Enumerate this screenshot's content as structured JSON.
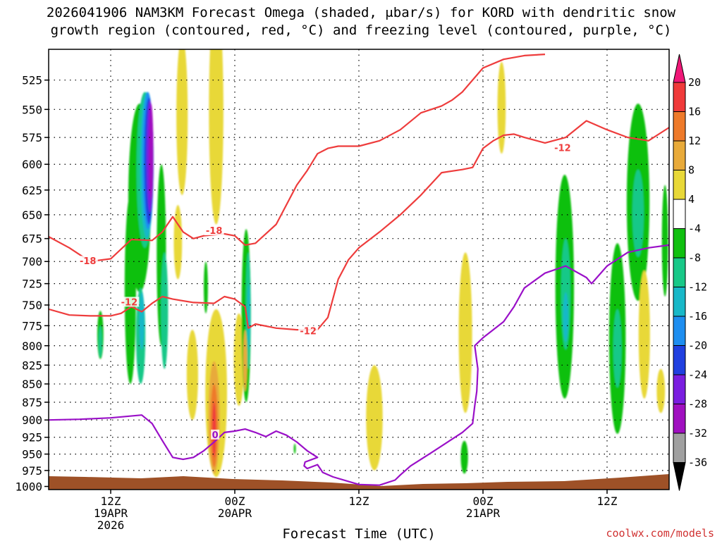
{
  "chart_data": {
    "type": "heatmap",
    "title_line1": "2026041906 NAM3KM Forecast Omega (shaded, μbar/s) for KORD with dendritic snow",
    "title_line2": "growth region (contoured, red, °C) and freezing level (contoured, purple, °C)",
    "xlabel": "Forecast Time (UTC)",
    "ylabel": "Pressure (mb)",
    "credit": "coolwx.com/models",
    "x_range_hours": [
      0,
      60
    ],
    "y_range_mb": [
      1005,
      500
    ],
    "x_ticks": [
      {
        "hour": 6,
        "line1": "12Z",
        "line2": "19APR",
        "line3": "2026"
      },
      {
        "hour": 18,
        "line1": "00Z",
        "line2": "20APR",
        "line3": ""
      },
      {
        "hour": 30,
        "line1": "12Z",
        "line2": "",
        "line3": ""
      },
      {
        "hour": 42,
        "line1": "00Z",
        "line2": "21APR",
        "line3": ""
      },
      {
        "hour": 54,
        "line1": "12Z",
        "line2": "",
        "line3": ""
      }
    ],
    "y_ticks": [
      525,
      550,
      575,
      600,
      625,
      650,
      675,
      700,
      725,
      750,
      775,
      800,
      825,
      850,
      875,
      900,
      925,
      950,
      975,
      1000
    ],
    "colorbar": {
      "labels": [
        "20",
        "16",
        "12",
        "8",
        "4",
        "-4",
        "-8",
        "-12",
        "-16",
        "-20",
        "-24",
        "-28",
        "-32",
        "-36"
      ],
      "colors": [
        "#f01878",
        "#f03a3a",
        "#ee7a2a",
        "#e8aa3a",
        "#e8d838",
        "#ffffff",
        "#10c010",
        "#18c888",
        "#18b8c8",
        "#1e8ef0",
        "#2040e0",
        "#7a1ee0",
        "#a010c0",
        "#a0a0a0",
        "#000000"
      ]
    },
    "omega_cells": [
      {
        "t": 5.0,
        "p": 787,
        "dt": 0.6,
        "dp": 60,
        "v": -4
      },
      {
        "t": 5.0,
        "p": 795,
        "dt": 0.35,
        "dp": 40,
        "v": -8
      },
      {
        "t": 7.9,
        "p": 740,
        "dt": 1.1,
        "dp": 220,
        "v": -4
      },
      {
        "t": 8.8,
        "p": 640,
        "dt": 2.2,
        "dp": 190,
        "v": -4
      },
      {
        "t": 9.3,
        "p": 610,
        "dt": 1.6,
        "dp": 150,
        "v": -8
      },
      {
        "t": 9.5,
        "p": 605,
        "dt": 1.3,
        "dp": 140,
        "v": -12
      },
      {
        "t": 9.6,
        "p": 600,
        "dt": 1.1,
        "dp": 130,
        "v": -16
      },
      {
        "t": 9.7,
        "p": 600,
        "dt": 0.9,
        "dp": 120,
        "v": -20
      },
      {
        "t": 9.8,
        "p": 595,
        "dt": 0.65,
        "dp": 105,
        "v": -24
      },
      {
        "t": 9.9,
        "p": 590,
        "dt": 0.45,
        "dp": 90,
        "v": -28
      },
      {
        "t": 8.9,
        "p": 790,
        "dt": 0.9,
        "dp": 120,
        "v": -8
      },
      {
        "t": 9.0,
        "p": 770,
        "dt": 0.5,
        "dp": 70,
        "v": -12
      },
      {
        "t": 10.9,
        "p": 700,
        "dt": 0.9,
        "dp": 200,
        "v": -4
      },
      {
        "t": 11.2,
        "p": 760,
        "dt": 0.7,
        "dp": 140,
        "v": -8
      },
      {
        "t": 12.9,
        "p": 560,
        "dt": 1.1,
        "dp": 140,
        "v": 4
      },
      {
        "t": 12.5,
        "p": 680,
        "dt": 0.8,
        "dp": 80,
        "v": 4
      },
      {
        "t": 15.2,
        "p": 730,
        "dt": 0.4,
        "dp": 60,
        "v": -4
      },
      {
        "t": 16.2,
        "p": 560,
        "dt": 1.4,
        "dp": 200,
        "v": 4
      },
      {
        "t": 13.9,
        "p": 840,
        "dt": 1.1,
        "dp": 120,
        "v": 4
      },
      {
        "t": 16.2,
        "p": 870,
        "dt": 2.1,
        "dp": 230,
        "v": 4
      },
      {
        "t": 16.0,
        "p": 900,
        "dt": 1.1,
        "dp": 160,
        "v": 8
      },
      {
        "t": 16.0,
        "p": 910,
        "dt": 0.7,
        "dp": 120,
        "v": 12
      },
      {
        "t": 16.0,
        "p": 915,
        "dt": 0.35,
        "dp": 80,
        "v": 16
      },
      {
        "t": 18.4,
        "p": 820,
        "dt": 1.0,
        "dp": 120,
        "v": 4
      },
      {
        "t": 19.1,
        "p": 770,
        "dt": 0.9,
        "dp": 210,
        "v": -4
      },
      {
        "t": 19.3,
        "p": 760,
        "dt": 0.5,
        "dp": 140,
        "v": -8
      },
      {
        "t": 19.35,
        "p": 765,
        "dt": 0.25,
        "dp": 80,
        "v": -12
      },
      {
        "t": 19.0,
        "p": 820,
        "dt": 0.4,
        "dp": 80,
        "v": 8
      },
      {
        "t": 23.8,
        "p": 942,
        "dt": 0.2,
        "dp": 15,
        "v": -4
      },
      {
        "t": 31.5,
        "p": 900,
        "dt": 1.6,
        "dp": 150,
        "v": 4
      },
      {
        "t": 40.3,
        "p": 790,
        "dt": 1.3,
        "dp": 200,
        "v": 4
      },
      {
        "t": 40.2,
        "p": 955,
        "dt": 0.7,
        "dp": 50,
        "v": -4
      },
      {
        "t": 43.8,
        "p": 550,
        "dt": 0.8,
        "dp": 80,
        "v": 4
      },
      {
        "t": 49.9,
        "p": 740,
        "dt": 1.8,
        "dp": 260,
        "v": -4
      },
      {
        "t": 50.0,
        "p": 740,
        "dt": 0.9,
        "dp": 130,
        "v": -8
      },
      {
        "t": 50.0,
        "p": 765,
        "dt": 0.5,
        "dp": 60,
        "v": -12
      },
      {
        "t": 55.0,
        "p": 800,
        "dt": 1.6,
        "dp": 240,
        "v": -4
      },
      {
        "t": 55.0,
        "p": 805,
        "dt": 0.8,
        "dp": 100,
        "v": -8
      },
      {
        "t": 57.0,
        "p": 645,
        "dt": 2.2,
        "dp": 200,
        "v": -4
      },
      {
        "t": 57.0,
        "p": 650,
        "dt": 1.1,
        "dp": 90,
        "v": -8
      },
      {
        "t": 59.6,
        "p": 680,
        "dt": 0.6,
        "dp": 120,
        "v": -4
      },
      {
        "t": 57.6,
        "p": 790,
        "dt": 1.1,
        "dp": 160,
        "v": 4
      },
      {
        "t": 59.2,
        "p": 860,
        "dt": 0.8,
        "dp": 60,
        "v": 4
      }
    ],
    "red_contours": [
      {
        "value": "-18",
        "points": [
          [
            0,
            673
          ],
          [
            2,
            685
          ],
          [
            4,
            700
          ],
          [
            6,
            697
          ],
          [
            8,
            676
          ],
          [
            10,
            677
          ],
          [
            11,
            668
          ],
          [
            12,
            652
          ],
          [
            13,
            668
          ],
          [
            14,
            675
          ],
          [
            15,
            672
          ],
          [
            16,
            671
          ],
          [
            17,
            670
          ],
          [
            18,
            672
          ],
          [
            19,
            682
          ],
          [
            20,
            680
          ],
          [
            22,
            660
          ],
          [
            24,
            620
          ],
          [
            25,
            606
          ],
          [
            26,
            590
          ],
          [
            27,
            585
          ],
          [
            28,
            583
          ],
          [
            30,
            583
          ],
          [
            32,
            578
          ],
          [
            34,
            568
          ],
          [
            36,
            553
          ],
          [
            38,
            547
          ],
          [
            39,
            542
          ],
          [
            40,
            535
          ],
          [
            42,
            515
          ],
          [
            44,
            508
          ],
          [
            46,
            505
          ],
          [
            48,
            504
          ]
        ],
        "labels": [
          [
            3.8,
            700
          ],
          [
            16.0,
            667
          ]
        ]
      },
      {
        "value": "-12",
        "points": [
          [
            0,
            755
          ],
          [
            2,
            762
          ],
          [
            4,
            763
          ],
          [
            6,
            763
          ],
          [
            7,
            760
          ],
          [
            8,
            752
          ],
          [
            9,
            758
          ],
          [
            10,
            748
          ],
          [
            11,
            740
          ],
          [
            12,
            743
          ],
          [
            14,
            747
          ],
          [
            16,
            748
          ],
          [
            17,
            740
          ],
          [
            18,
            743
          ],
          [
            19,
            752
          ],
          [
            19.3,
            778
          ],
          [
            20,
            773
          ],
          [
            22,
            778
          ],
          [
            24,
            780
          ],
          [
            26,
            780
          ],
          [
            27,
            765
          ],
          [
            28,
            720
          ],
          [
            29,
            698
          ],
          [
            30,
            685
          ],
          [
            32,
            668
          ],
          [
            34,
            650
          ],
          [
            36,
            630
          ],
          [
            38,
            608
          ],
          [
            40,
            605
          ],
          [
            41,
            603
          ],
          [
            42,
            585
          ],
          [
            43,
            578
          ],
          [
            44,
            573
          ],
          [
            45,
            572
          ],
          [
            46,
            575
          ],
          [
            48,
            580
          ],
          [
            50,
            575
          ],
          [
            52,
            560
          ],
          [
            54,
            568
          ],
          [
            56,
            575
          ],
          [
            58,
            578
          ],
          [
            60,
            566
          ]
        ],
        "labels": [
          [
            7.8,
            747
          ],
          [
            25.1,
            782
          ],
          [
            49.7,
            585
          ]
        ]
      }
    ],
    "purple_contours": [
      {
        "value": "0",
        "points": [
          [
            0,
            900
          ],
          [
            3,
            899
          ],
          [
            6,
            897
          ],
          [
            9,
            893
          ],
          [
            10,
            905
          ],
          [
            11,
            930
          ],
          [
            12,
            955
          ],
          [
            13,
            958
          ],
          [
            14,
            955
          ],
          [
            15,
            945
          ],
          [
            16,
            932
          ],
          [
            17,
            918
          ],
          [
            18,
            916
          ],
          [
            19,
            913
          ],
          [
            20,
            918
          ],
          [
            21,
            924
          ],
          [
            22,
            916
          ],
          [
            23,
            922
          ],
          [
            24,
            932
          ],
          [
            25,
            945
          ],
          [
            26,
            955
          ],
          [
            24.8,
            962
          ],
          [
            24.7,
            968
          ],
          [
            25.0,
            972
          ],
          [
            26,
            966
          ],
          [
            26.5,
            978
          ],
          [
            27.5,
            985
          ],
          [
            30,
            997
          ],
          [
            32,
            998
          ],
          [
            33.5,
            990
          ],
          [
            34,
            982
          ],
          [
            35,
            968
          ],
          [
            37,
            948
          ],
          [
            40,
            918
          ],
          [
            41,
            905
          ],
          [
            41.2,
            880
          ],
          [
            41.4,
            860
          ],
          [
            41.5,
            830
          ],
          [
            41.2,
            800
          ],
          [
            42,
            790
          ],
          [
            44,
            770
          ],
          [
            45,
            752
          ],
          [
            46,
            730
          ],
          [
            48,
            713
          ],
          [
            50,
            705
          ],
          [
            52,
            718
          ],
          [
            52.5,
            725
          ],
          [
            54,
            705
          ],
          [
            56,
            690
          ],
          [
            58,
            685
          ],
          [
            60,
            682
          ]
        ],
        "labels": [
          [
            16.1,
            922
          ]
        ]
      }
    ]
  }
}
